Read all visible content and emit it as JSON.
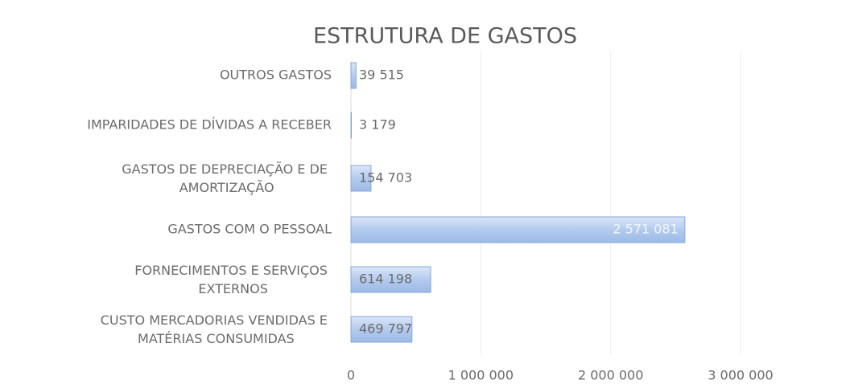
{
  "chart_data": {
    "type": "bar",
    "orientation": "horizontal",
    "title": "ESTRUTURA DE GASTOS",
    "categories": [
      "OUTROS GASTOS",
      "IMPARIDADES DE DÍVIDAS A RECEBER",
      "GASTOS DE DEPRECIAÇÃO E DE AMORTIZAÇÃO",
      "GASTOS COM O PESSOAL",
      "FORNECIMENTOS E SERVIÇOS EXTERNOS",
      "CUSTO MERCADORIAS VENDIDAS E MATÉRIAS CONSUMIDAS"
    ],
    "values": [
      39515,
      3179,
      154703,
      2571081,
      614198,
      469797
    ],
    "value_labels": [
      "39 515",
      "3 179",
      "154 703",
      "2 571 081",
      "614 198",
      "469 797"
    ],
    "color": "#b3cbee",
    "xlim": [
      0,
      3000000
    ],
    "xticks": [
      0,
      {
        "value": 1000000,
        "label": "1 000 000"
      },
      {
        "value": 2000000,
        "label": "2 000 000"
      },
      {
        "value": 3000000,
        "label": "3 000 000"
      }
    ],
    "grid": true
  }
}
